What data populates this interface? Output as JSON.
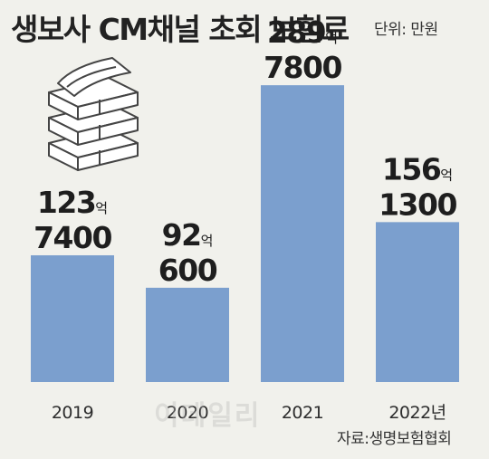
{
  "chart_data": {
    "type": "bar",
    "title": "생보사 CM채널 초회 보험료",
    "unit_label": "단위: 만원",
    "categories": [
      "2019",
      "2020",
      "2021",
      "2022년"
    ],
    "values": [
      1237400,
      920600,
      2897800,
      1561300
    ],
    "value_labels": [
      {
        "eok": "123",
        "eok_unit": "억",
        "man": "7400"
      },
      {
        "eok": "92",
        "eok_unit": "억",
        "man": "600"
      },
      {
        "eok": "289",
        "eok_unit": "억",
        "man": "7800"
      },
      {
        "eok": "156",
        "eok_unit": "억",
        "man": "1300"
      }
    ],
    "ylim": [
      0,
      3500000
    ],
    "grid": false,
    "bar_color": "#7b9fce",
    "source": "자료:생명보험협회"
  },
  "watermark": "이데일리",
  "icon": "money-stack-icon"
}
